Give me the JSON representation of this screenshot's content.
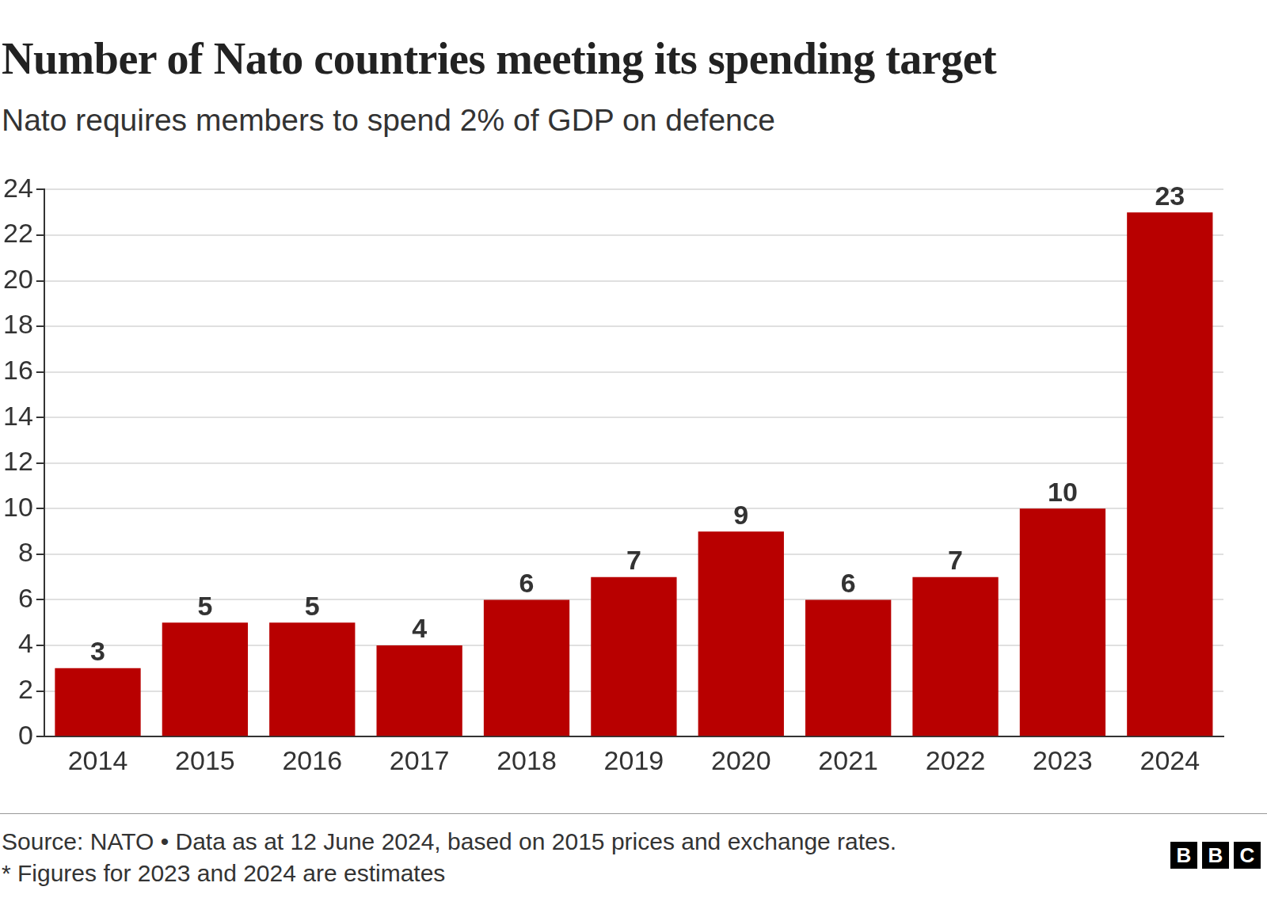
{
  "chart_data": {
    "type": "bar",
    "title": "Number of Nato countries meeting its spending target",
    "subtitle": "Nato requires members to spend 2% of GDP on defence",
    "categories": [
      "2014",
      "2015",
      "2016",
      "2017",
      "2018",
      "2019",
      "2020",
      "2021",
      "2022",
      "2023",
      "2024"
    ],
    "values": [
      3,
      5,
      5,
      4,
      6,
      7,
      9,
      6,
      7,
      10,
      23
    ],
    "color": "#b80000",
    "ylim": [
      0,
      24
    ],
    "yticks": [
      0,
      2,
      4,
      6,
      8,
      10,
      12,
      14,
      16,
      18,
      20,
      22,
      24
    ],
    "grid": true,
    "data_labels": true,
    "source": "Source: NATO • Data as at 12 June 2024, based on 2015 prices and exchange rates.",
    "note": "* Figures for 2023 and 2024 are estimates",
    "logo": "BBC"
  }
}
